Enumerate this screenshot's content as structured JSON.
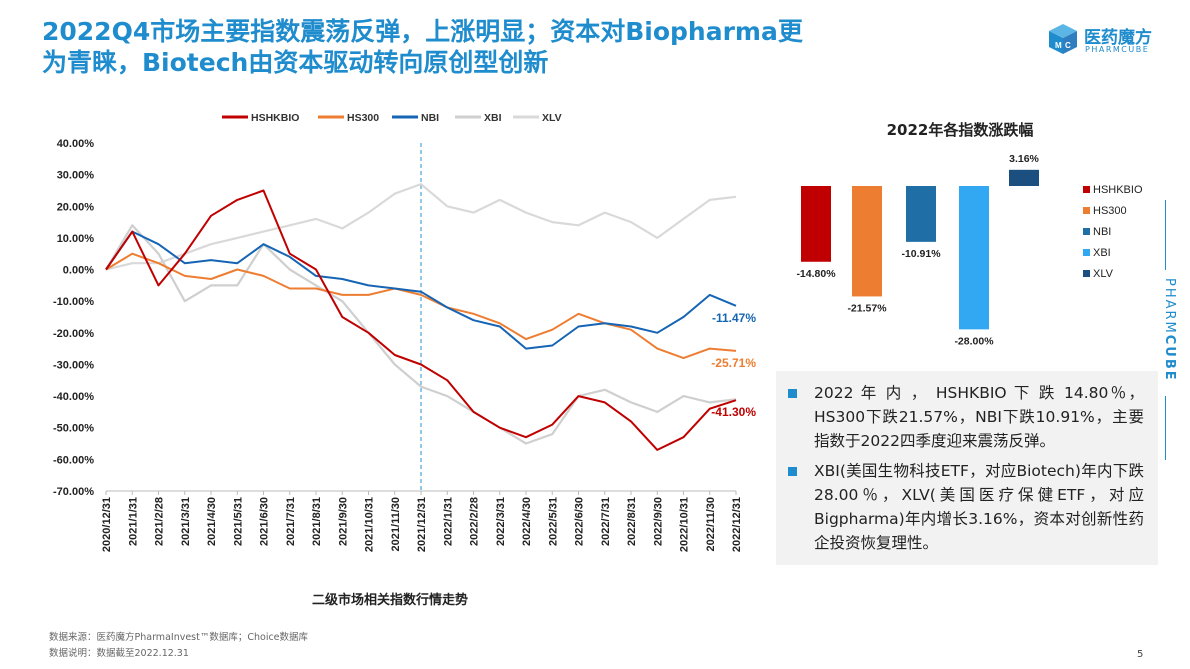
{
  "header": {
    "title_line1": "2022Q4市场主要指数震荡反弹，上涨明显；资本对Biopharma更",
    "title_line2": "为青睐，Biotech由资本驱动转向原创型创新"
  },
  "brand": {
    "logo_cn": "医药魔方",
    "logo_en": "PHARMCUBE",
    "side_text_a": "PHARM",
    "side_text_b": "CUBE",
    "color": "#1f8ccd",
    "logo_icon": "cube-icon"
  },
  "line_chart_caption": "二级市场相关指数行情走势",
  "bar_chart_title": "2022年各指数涨跌幅",
  "notes": [
    "2022 年 内 ， HSHKBIO 下 跌 14.80％，HS300下跌21.57%，NBI下跌10.91%，主要指数于2022四季度迎来震荡反弹。",
    "XBI(美国生物科技ETF，对应Biotech)年内下跌28.00％，XLV(美国医疗保健ETF，对应Bigpharma)年内增长3.16%，资本对创新性药企投资恢复理性。"
  ],
  "footer": {
    "source": "数据来源：医药魔方PharmaInvest™数据库；Choice数据库",
    "note": "数据说明：数据截至2022.12.31",
    "page": "5"
  },
  "chart_data": [
    {
      "type": "line",
      "title": "二级市场相关指数行情走势",
      "ylim": [
        -70,
        40
      ],
      "y_unit": "%",
      "yticks": [
        "40.00%",
        "30.00%",
        "20.00%",
        "10.00%",
        "0.00%",
        "-10.00%",
        "-20.00%",
        "-30.00%",
        "-40.00%",
        "-50.00%",
        "-60.00%",
        "-70.00%"
      ],
      "categories": [
        "2020/12/31",
        "2021/1/31",
        "2021/2/28",
        "2021/3/31",
        "2021/4/30",
        "2021/5/31",
        "2021/6/30",
        "2021/7/31",
        "2021/8/31",
        "2021/9/30",
        "2021/10/31",
        "2021/11/30",
        "2021/12/31",
        "2022/1/31",
        "2022/2/28",
        "2022/3/31",
        "2022/4/30",
        "2022/5/31",
        "2022/6/30",
        "2022/7/31",
        "2022/8/31",
        "2022/9/30",
        "2022/10/31",
        "2022/11/30",
        "2022/12/31"
      ],
      "marker_line_category": "2021/12/31",
      "legend_position": "top",
      "series": [
        {
          "name": "HSHKBIO",
          "color": "#c00000",
          "values": [
            0,
            12,
            -5,
            5,
            17,
            22,
            25,
            5,
            0,
            -15,
            -20,
            -27,
            -30,
            -35,
            -45,
            -50,
            -53,
            -49,
            -40,
            -42,
            -48,
            -57,
            -53,
            -44,
            -41.3
          ]
        },
        {
          "name": "HS300",
          "color": "#ed7d31",
          "values": [
            0,
            5,
            2,
            -2,
            -3,
            0,
            -2,
            -6,
            -6,
            -8,
            -8,
            -6,
            -8,
            -12,
            -14,
            -17,
            -22,
            -19,
            -14,
            -17,
            -19,
            -25,
            -28,
            -25,
            -25.71
          ]
        },
        {
          "name": "NBI",
          "color": "#1565b4",
          "values": [
            0,
            12,
            8,
            2,
            3,
            2,
            8,
            4,
            -2,
            -3,
            -5,
            -6,
            -7,
            -12,
            -16,
            -18,
            -25,
            -24,
            -18,
            -17,
            -18,
            -20,
            -15,
            -8,
            -11.47
          ]
        },
        {
          "name": "XBI",
          "color": "#cfcfcf",
          "values": [
            0,
            14,
            5,
            -10,
            -5,
            -5,
            8,
            0,
            -5,
            -10,
            -20,
            -30,
            -37,
            -40,
            -45,
            -50,
            -55,
            -52,
            -40,
            -38,
            -42,
            -45,
            -40,
            -42,
            -41
          ]
        },
        {
          "name": "XLV",
          "color": "#d9d9d9",
          "values": [
            0,
            2,
            2,
            5,
            8,
            10,
            12,
            14,
            16,
            13,
            18,
            24,
            27,
            20,
            18,
            22,
            18,
            15,
            14,
            18,
            15,
            10,
            16,
            22,
            23
          ]
        }
      ],
      "end_labels": [
        {
          "series": "NBI",
          "text": "-11.47%",
          "color": "#1565b4"
        },
        {
          "series": "HS300",
          "text": "-25.71%",
          "color": "#ed7d31"
        },
        {
          "series": "HSHKBIO",
          "text": "-41.30%",
          "color": "#c00000"
        }
      ]
    },
    {
      "type": "bar",
      "title": "2022年各指数涨跌幅",
      "categories": [
        "HSHKBIO",
        "HS300",
        "NBI",
        "XBI",
        "XLV"
      ],
      "values": [
        -14.8,
        -21.57,
        -10.91,
        -28.0,
        3.16
      ],
      "labels": [
        "-14.80%",
        "-21.57%",
        "-10.91%",
        "-28.00%",
        "3.16%"
      ],
      "colors": [
        "#c00000",
        "#ed7d31",
        "#1f6fa6",
        "#33a8f2",
        "#1a4f80"
      ],
      "ylim": [
        -30,
        5
      ],
      "legend_position": "right"
    }
  ]
}
